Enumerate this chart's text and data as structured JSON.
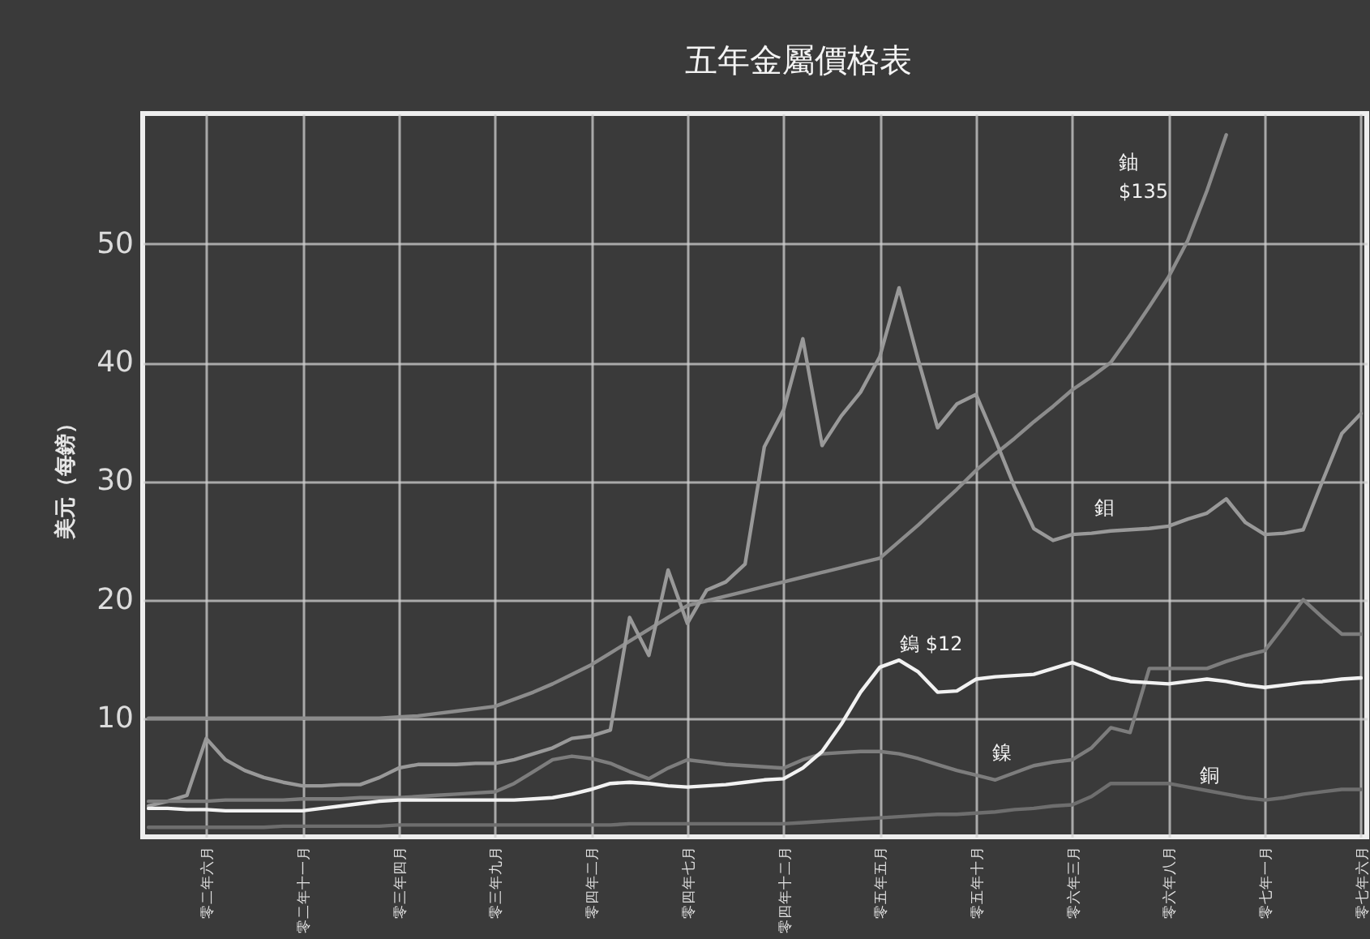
{
  "chart_data": {
    "type": "line",
    "title": "五年金屬價格表",
    "ylabel": "美元（每鎊）",
    "categories": [
      null,
      null,
      null,
      "零二年六月",
      null,
      null,
      null,
      null,
      "零二年十一月",
      null,
      null,
      null,
      null,
      "零三年四月",
      null,
      null,
      null,
      null,
      "零三年九月",
      null,
      null,
      null,
      null,
      "零四年二月",
      null,
      null,
      null,
      null,
      "零四年七月",
      null,
      null,
      null,
      null,
      "零四年十二月",
      null,
      null,
      null,
      null,
      "零五年五月",
      null,
      null,
      null,
      null,
      "零五年十月",
      null,
      null,
      null,
      null,
      "零六年三月",
      null,
      null,
      null,
      null,
      "零六年八月",
      null,
      null,
      null,
      null,
      "零七年一月",
      null,
      null,
      null,
      null,
      "零七年六月"
    ],
    "ylim": [
      0,
      61
    ],
    "yticks": [
      10,
      20,
      30,
      40,
      50
    ],
    "grid": true,
    "legend": false,
    "marker": "none",
    "line_style": "solid",
    "series": [
      {
        "color": "#8c8c8c",
        "values": [
          10,
          10,
          10,
          10,
          10,
          10,
          10,
          10,
          10,
          10,
          10,
          10,
          10,
          10.1,
          10.2,
          10.4,
          10.6,
          10.8,
          11,
          11.6,
          12.2,
          12.9,
          13.7,
          14.5,
          15.5,
          16.5,
          17.5,
          18.5,
          19.5,
          19.9,
          20.3,
          20.7,
          21.1,
          21.5,
          21.9,
          22.3,
          22.7,
          23.1,
          23.5,
          24.9,
          26.3,
          27.8,
          29.3,
          30.9,
          32.3,
          33.6,
          35,
          36.3,
          37.7,
          38.8,
          40,
          42.3,
          44.7,
          47.2,
          50.3,
          54.5,
          59.2,
          null,
          null,
          null,
          null,
          null,
          null,
          null
        ]
      },
      {
        "color": "#999999",
        "values": [
          2.6,
          3,
          3.5,
          8.3,
          6.5,
          5.6,
          5,
          4.6,
          4.3,
          4.3,
          4.4,
          4.4,
          5,
          5.8,
          6.1,
          6.1,
          6.1,
          6.2,
          6.2,
          6.5,
          7,
          7.5,
          8.3,
          8.5,
          9,
          18.5,
          15.3,
          22.5,
          18,
          20.8,
          21.5,
          23,
          32.9,
          36,
          42,
          33,
          35.5,
          37.5,
          40.5,
          46.3,
          40.2,
          34.5,
          36.5,
          37.3,
          33.5,
          29.5,
          26,
          25,
          25.5,
          25.6,
          25.8,
          25.9,
          26,
          26.2,
          26.8,
          27.3,
          28.5,
          26.5,
          25.5,
          25.6,
          25.9,
          30,
          34,
          35.7
        ]
      },
      {
        "color": "#7d7d7d",
        "values": [
          3,
          3,
          3,
          3,
          3.1,
          3.1,
          3.1,
          3.1,
          3.2,
          3.2,
          3.2,
          3.3,
          3.3,
          3.3,
          3.4,
          3.5,
          3.6,
          3.7,
          3.8,
          4.5,
          5.5,
          6.5,
          6.8,
          6.6,
          6.2,
          5.5,
          4.9,
          5.8,
          6.5,
          6.3,
          6.1,
          6,
          5.9,
          5.8,
          6.5,
          7,
          7.1,
          7.2,
          7.2,
          7,
          6.6,
          6.1,
          5.6,
          5.2,
          4.8,
          5.4,
          6,
          6.3,
          6.5,
          7.5,
          9.2,
          8.8,
          14.2,
          14.2,
          14.2,
          14.2,
          14.8,
          15.3,
          15.7,
          17.8,
          20,
          18.5,
          17.1,
          17.1
        ]
      },
      {
        "color": "#6e6e6e",
        "values": [
          0.8,
          0.8,
          0.8,
          0.8,
          0.8,
          0.8,
          0.8,
          0.9,
          0.9,
          0.9,
          0.9,
          0.9,
          0.9,
          1,
          1,
          1,
          1,
          1,
          1,
          1,
          1,
          1,
          1,
          1,
          1,
          1.1,
          1.1,
          1.1,
          1.1,
          1.1,
          1.1,
          1.1,
          1.1,
          1.1,
          1.2,
          1.3,
          1.4,
          1.5,
          1.6,
          1.7,
          1.8,
          1.9,
          1.9,
          2,
          2.1,
          2.3,
          2.4,
          2.6,
          2.7,
          3.4,
          4.5,
          4.5,
          4.5,
          4.5,
          4.2,
          3.9,
          3.6,
          3.3,
          3.1,
          3.3,
          3.6,
          3.8,
          4,
          4
        ]
      },
      {
        "color": "#f2f2f2",
        "values": [
          2.4,
          2.4,
          2.3,
          2.3,
          2.2,
          2.2,
          2.2,
          2.2,
          2.2,
          2.4,
          2.6,
          2.8,
          3,
          3.1,
          3.1,
          3.1,
          3.1,
          3.1,
          3.1,
          3.1,
          3.2,
          3.3,
          3.6,
          4,
          4.5,
          4.6,
          4.5,
          4.3,
          4.2,
          4.3,
          4.4,
          4.6,
          4.8,
          4.9,
          5.8,
          7.2,
          9.5,
          12.2,
          14.3,
          14.9,
          13.9,
          12.2,
          12.3,
          13.3,
          13.5,
          13.6,
          13.7,
          14.2,
          14.7,
          14.1,
          13.4,
          13.1,
          13,
          12.9,
          13.1,
          13.3,
          13.1,
          12.8,
          12.6,
          12.8,
          13,
          13.1,
          13.3,
          13.4
        ]
      }
    ],
    "annotations": [
      "鈾",
      "$135",
      "鉬",
      "鎢 $12",
      "鎳",
      "銅"
    ]
  }
}
